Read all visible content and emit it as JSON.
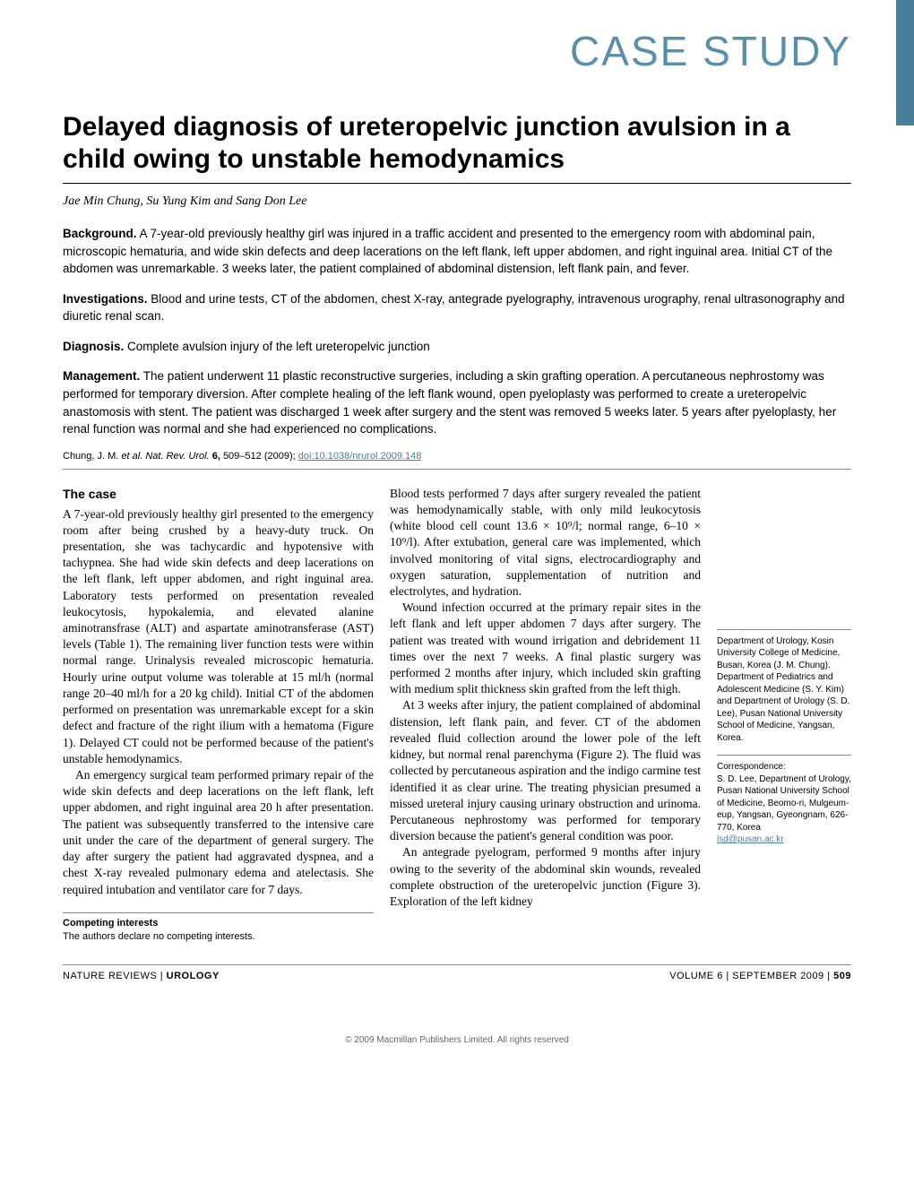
{
  "header": {
    "category": "CASE STUDY",
    "tab_color": "#4a7f99",
    "category_color": "#5a8fa8"
  },
  "article": {
    "title": "Delayed diagnosis of ureteropelvic junction avulsion in a child owing to unstable hemodynamics",
    "authors": "Jae Min Chung, Su Yung Kim and Sang Don Lee"
  },
  "abstract": {
    "background": {
      "label": "Background.",
      "text": "A 7-year-old previously healthy girl was injured in a traffic accident and presented to the emergency room with abdominal pain, microscopic hematuria, and wide skin defects and deep lacerations on the left flank, left upper abdomen, and right inguinal area. Initial CT of the abdomen was unremarkable. 3 weeks later, the patient complained of abdominal distension, left flank pain, and fever."
    },
    "investigations": {
      "label": "Investigations.",
      "text": "Blood and urine tests, CT of the abdomen, chest X-ray, antegrade pyelography, intravenous urography, renal ultrasonography and diuretic renal scan."
    },
    "diagnosis": {
      "label": "Diagnosis.",
      "text": "Complete avulsion injury of the left ureteropelvic junction"
    },
    "management": {
      "label": "Management.",
      "text": "The patient underwent 11 plastic reconstructive surgeries, including a skin grafting operation. A percutaneous nephrostomy was performed for temporary diversion. After complete healing of the left flank wound, open pyeloplasty was performed to create a ureteropelvic anastomosis with stent. The patient was discharged 1 week after surgery and the stent was removed 5 weeks later. 5 years after pyeloplasty, her renal function was normal and she had experienced no complications."
    }
  },
  "citation": {
    "prefix": "Chung, J. M. ",
    "journal_italic": "et al. Nat. Rev. Urol.",
    "volume_bold": " 6, ",
    "pages": "509–512 (2009); ",
    "doi": "doi:10.1038/nrurol.2009.148"
  },
  "body": {
    "heading": "The case",
    "left_paras": [
      "A 7-year-old previously healthy girl presented to the emergency room after being crushed by a heavy-duty truck. On presentation, she was tachycardic and hypotensive with tachypnea. She had wide skin defects and deep lacerations on the left flank, left upper abdomen, and right inguinal area. Laboratory tests performed on presentation revealed leukocytosis, hypokalemia, and elevated alanine aminotransfrase (ALT) and aspartate aminotransferase (AST) levels (Table 1). The remaining liver function tests were within normal range. Urinalysis revealed microscopic hematuria. Hourly urine output volume was tolerable at 15 ml/h (normal range 20–40 ml/h for a 20 kg child). Initial CT of the abdomen performed on presentation was unremarkable except for a skin defect and fracture of the right ilium with a hematoma (Figure 1). Delayed CT could not be performed because of the patient's unstable hemodynamics.",
      "An emergency surgical team performed primary repair of the wide skin defects and deep lacerations on the left flank, left upper abdomen, and right inguinal area 20 h after presentation. The patient was subsequently transferred to the intensive care unit under the care of the department of general surgery. The day after surgery the patient had aggravated dyspnea, and a chest X-ray revealed pulmonary edema and atelectasis. She required intubation and ventilator care for 7 days."
    ],
    "mid_paras": [
      "Blood tests performed 7 days after surgery revealed the patient was hemodynamically stable, with only mild leukocytosis (white blood cell count 13.6 × 10⁹/l; normal range, 6–10 × 10⁹/l). After extubation, general care was implemented, which involved monitoring of vital signs, electrocardiography and oxygen saturation, supplementation of nutrition and electrolytes, and hydration.",
      "Wound infection occurred at the primary repair sites in the left flank and left upper abdomen 7 days after surgery. The patient was treated with wound irrigation and debridement 11 times over the next 7 weeks. A final plastic surgery was performed 2 months after injury, which included skin grafting with medium split thickness skin grafted from the left thigh.",
      "At 3 weeks after injury, the patient complained of abdominal distension, left flank pain, and fever. CT of the abdomen revealed fluid collection around the lower pole of the left kidney, but normal renal parenchyma (Figure 2). The fluid was collected by percutaneous aspiration and the indigo carmine test identified it as clear urine. The treating physician presumed a missed ureteral injury causing urinary obstruction and urinoma. Percutaneous nephrostomy was performed for temporary diversion because the patient's general condition was poor.",
      "An antegrade pyelogram, performed 9 months after injury owing to the severity of the abdominal skin wounds, revealed complete obstruction of the ureteropelvic junction (Figure 3). Exploration of the left kidney"
    ]
  },
  "competing": {
    "label": "Competing interests",
    "text": "The authors declare no competing interests."
  },
  "affiliation": {
    "text": "Department of Urology, Kosin University College of Medicine, Busan, Korea (J. M. Chung). Department of Pediatrics and Adolescent Medicine (S. Y. Kim) and Department of Urology (S. D. Lee), Pusan National University School of Medicine, Yangsan, Korea."
  },
  "correspondence": {
    "label": "Correspondence:",
    "text": "S. D. Lee, Department of Urology, Pusan National University School of Medicine, Beomo-ri, Mulgeum-eup, Yangsan, Gyeongnam, 626-770, Korea",
    "email": "lsd@pusan.ac.kr"
  },
  "footer": {
    "left_prefix": "NATURE REVIEWS | ",
    "left_bold": "UROLOGY",
    "right": "VOLUME 6 | SEPTEMBER 2009 | ",
    "page": "509"
  },
  "copyright": "© 2009 Macmillan Publishers Limited. All rights reserved",
  "colors": {
    "accent": "#4a7f99",
    "category": "#5a8fa8",
    "text": "#000000",
    "rule": "#888888",
    "background": "#ffffff"
  },
  "typography": {
    "category_fontsize": 46,
    "title_fontsize": 30,
    "body_fontsize": 13.5,
    "sidebar_fontsize": 10,
    "footer_fontsize": 11
  }
}
